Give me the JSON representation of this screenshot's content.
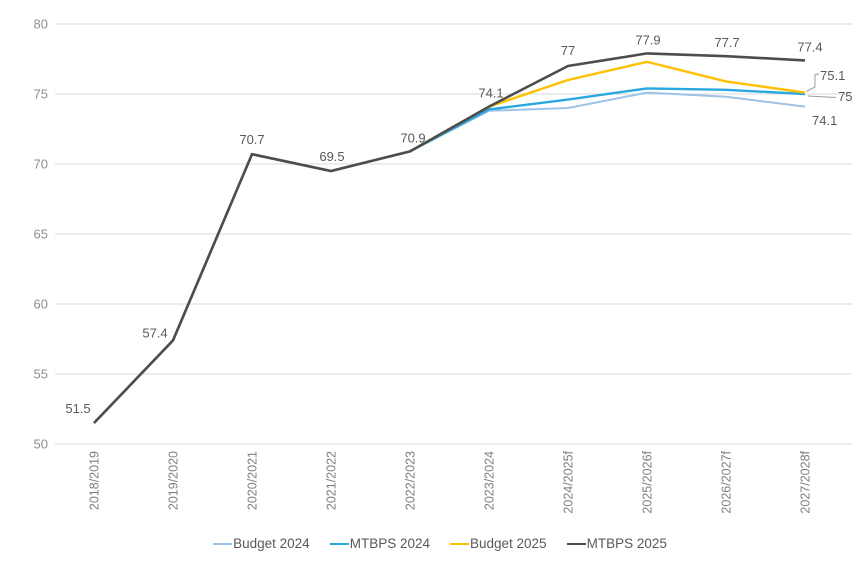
{
  "chart_data": {
    "type": "line",
    "title": "",
    "xlabel": "",
    "ylabel": "",
    "categories": [
      "2018/2019",
      "2019/2020",
      "2020/2021",
      "2021/2022",
      "2022/2023",
      "2023/2024",
      "2024/2025f",
      "2025/2026f",
      "2026/2027f",
      "2027/2028f"
    ],
    "series": [
      {
        "name": "Budget 2024",
        "color": "#9DC3E6",
        "stroke_width": 2,
        "values": [
          51.5,
          57.4,
          70.7,
          69.5,
          70.9,
          73.8,
          74.0,
          75.1,
          74.8,
          74.1
        ],
        "end_label": "74.1"
      },
      {
        "name": "MTBPS 2024",
        "color": "#29A8E0",
        "stroke_width": 2.4,
        "values": [
          51.5,
          57.4,
          70.7,
          69.5,
          70.9,
          73.9,
          74.6,
          75.4,
          75.3,
          75.0
        ],
        "end_label": "75"
      },
      {
        "name": "Budget 2025",
        "color": "#FFC000",
        "stroke_width": 2.4,
        "values": [
          51.5,
          57.4,
          70.7,
          69.5,
          70.9,
          74.1,
          76.0,
          77.3,
          75.9,
          75.1
        ],
        "end_label": "75.1"
      },
      {
        "name": "MTBPS 2025",
        "color": "#4D4D4D",
        "stroke_width": 2.6,
        "values": [
          51.5,
          57.4,
          70.7,
          69.5,
          70.9,
          74.1,
          77.0,
          77.9,
          77.7,
          77.4
        ],
        "point_labels": [
          "51.5",
          "57.4",
          "70.7",
          "69.5",
          "70.9",
          "74.1",
          "77",
          "77.9",
          "77.7",
          "77.4"
        ]
      }
    ],
    "y_ticks": [
      "80",
      "75",
      "70",
      "65",
      "60",
      "55",
      "50"
    ],
    "ylim": [
      50,
      80
    ],
    "grid": true,
    "legend_position": "bottom"
  },
  "colors": {
    "background": "#FFFFFF",
    "gridline": "#D9D9D9",
    "axis_tick_text": "#8E8E8E",
    "category_text": "#7F7F7F",
    "data_label_text": "#595959",
    "legend_text": "#595959",
    "leader_line": "#9B9B9B"
  }
}
